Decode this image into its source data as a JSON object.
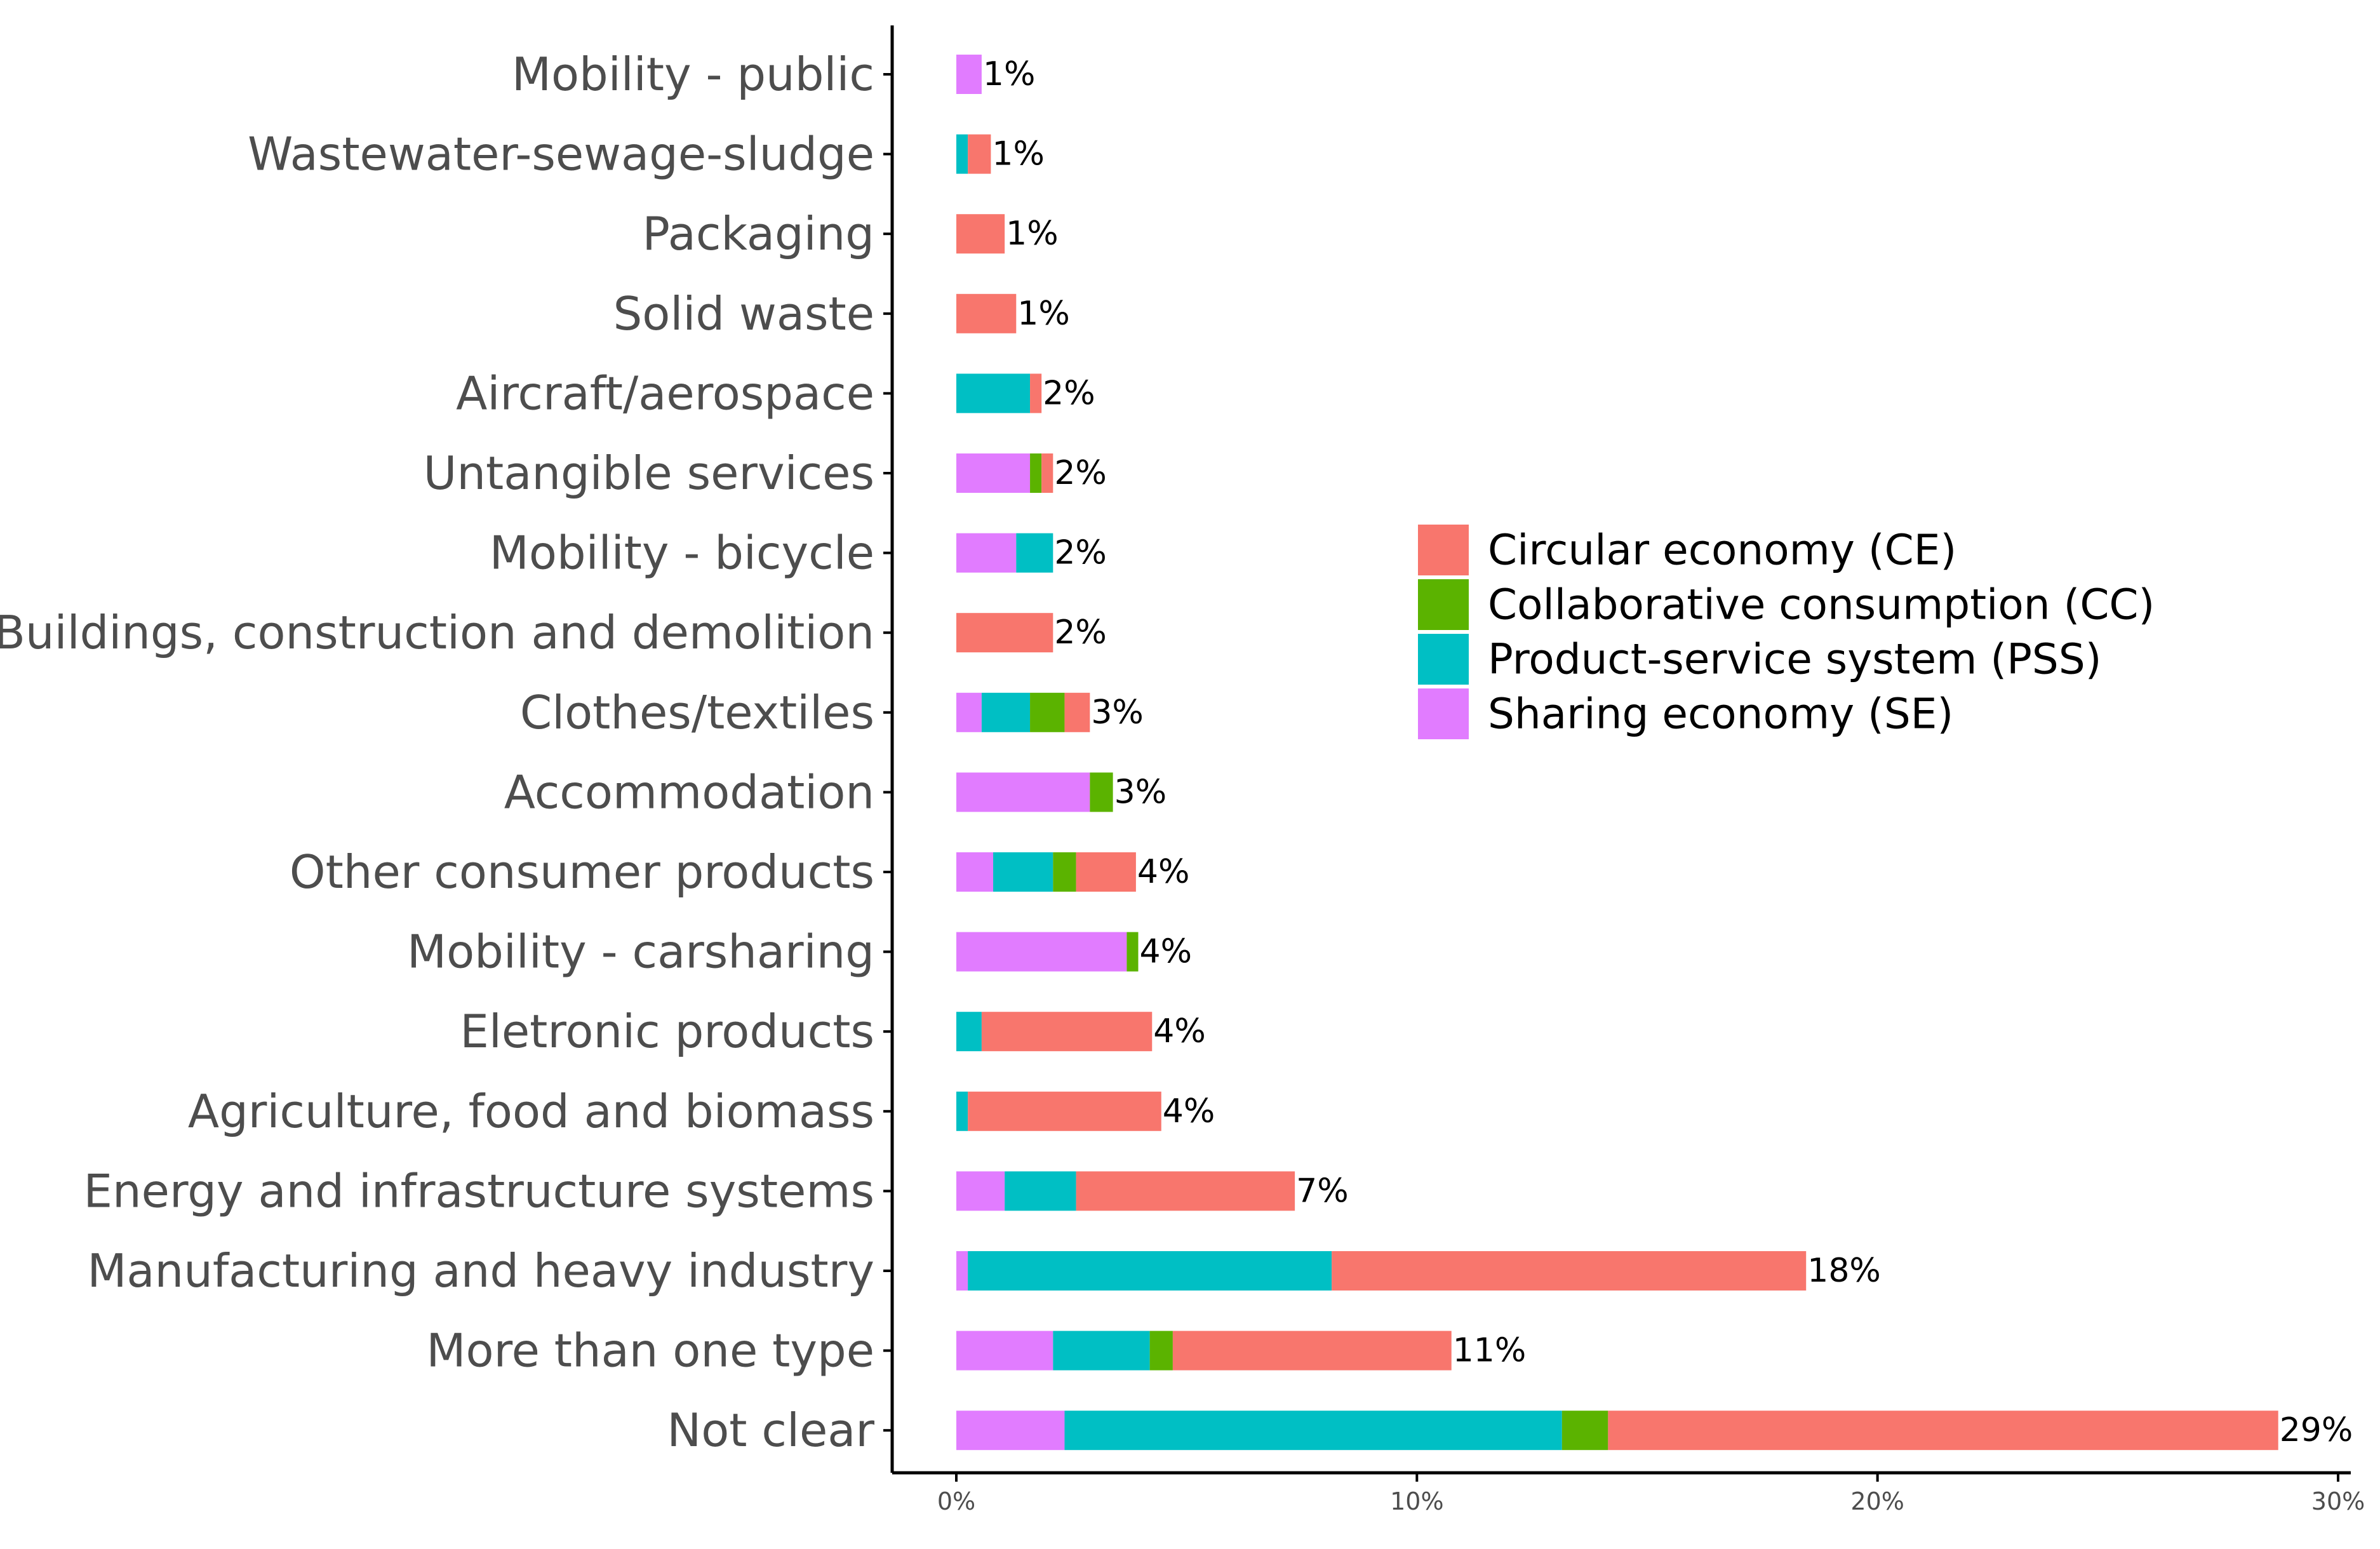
{
  "chart_data": {
    "type": "bar",
    "orientation": "horizontal",
    "stacked": true,
    "title": "",
    "xlabel": "",
    "ylabel": "",
    "xlim": [
      0,
      30
    ],
    "x_ticks": [
      0,
      10,
      20,
      30
    ],
    "x_tick_labels": [
      "0%",
      "10%",
      "20%",
      "30%"
    ],
    "grid": false,
    "legend_position": "right",
    "categories": [
      "Mobility - public",
      "Wastewater-sewage-sludge",
      "Packaging",
      "Solid waste",
      "Aircraft/aerospace",
      "Untangible services",
      "Mobility - bicycle",
      "Buildings, construction and demolition",
      "Clothes/textiles",
      "Accommodation",
      "Other consumer products",
      "Mobility - carsharing",
      "Eletronic products",
      "Agriculture, food and biomass",
      "Energy and infrastructure systems",
      "Manufacturing and heavy industry",
      "More than one type",
      "Not clear"
    ],
    "stack_order": [
      "Sharing economy (SE)",
      "Product-service system (PSS)",
      "Collaborative consumption (CC)",
      "Circular economy (CE)"
    ],
    "series": [
      {
        "name": "Circular economy (CE)",
        "color": "#F8766D",
        "values": [
          0,
          0.5,
          1.05,
          1.3,
          0.25,
          0.25,
          0,
          2.1,
          0.55,
          0,
          1.3,
          0,
          3.7,
          4.2,
          4.75,
          10.3,
          6.05,
          14.55
        ]
      },
      {
        "name": "Collaborative consumption (CC)",
        "color": "#5BB300",
        "values": [
          0,
          0,
          0,
          0,
          0,
          0.25,
          0,
          0,
          0.75,
          0.5,
          0.5,
          0.25,
          0,
          0,
          0,
          0,
          0.5,
          1.0
        ]
      },
      {
        "name": "Product-service system (PSS)",
        "color": "#00BFC4",
        "values": [
          0,
          0.25,
          0,
          0,
          1.6,
          0,
          0.8,
          0,
          1.05,
          0,
          1.3,
          0,
          0.55,
          0.25,
          1.55,
          7.9,
          2.1,
          10.8
        ]
      },
      {
        "name": "Sharing economy (SE)",
        "color": "#E17CFF",
        "values": [
          0.55,
          0,
          0,
          0,
          0,
          1.6,
          1.3,
          0,
          0.55,
          2.9,
          0.8,
          3.7,
          0,
          0,
          1.05,
          0.25,
          2.1,
          2.35
        ]
      }
    ],
    "totals": [
      0.55,
      0.75,
      1.05,
      1.3,
      1.85,
      2.1,
      2.1,
      2.1,
      2.9,
      3.4,
      3.9,
      3.95,
      4.25,
      4.45,
      7.35,
      18.45,
      10.75,
      28.7
    ],
    "data_labels": [
      "1%",
      "1%",
      "1%",
      "1%",
      "2%",
      "2%",
      "2%",
      "2%",
      "3%",
      "3%",
      "4%",
      "4%",
      "4%",
      "4%",
      "7%",
      "18%",
      "11%",
      "29%"
    ]
  }
}
